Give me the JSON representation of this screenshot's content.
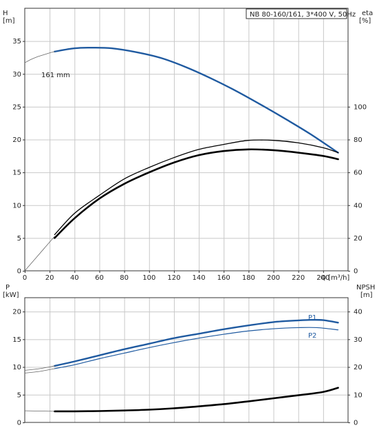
{
  "chart_data": [
    {
      "type": "line",
      "title": "NB 80-160/161, 3*400 V, 50Hz",
      "xlabel": "Q [m³/h]",
      "ylabel_left": [
        "H",
        "[m]"
      ],
      "ylabel_right": [
        "eta",
        "[%]"
      ],
      "xlim": [
        0,
        260
      ],
      "ylim_left": [
        0,
        40
      ],
      "ylim_right": [
        0,
        160
      ],
      "x_ticks": [
        "0",
        "20",
        "40",
        "60",
        "80",
        "100",
        "120",
        "140",
        "160",
        "180",
        "200",
        "220",
        "240"
      ],
      "y_ticks_left": [
        "0",
        "5",
        "10",
        "15",
        "20",
        "25",
        "30",
        "35"
      ],
      "y_ticks_right": [
        "0",
        "20",
        "40",
        "60",
        "80",
        "100"
      ],
      "grid": true,
      "annotation": "161 mm",
      "colors": {
        "head": "#1f5aa0",
        "eta": "#000000",
        "thin": "#666666"
      },
      "series": [
        {
          "key": "head",
          "name": "161 mm",
          "axis": "left",
          "x": [
            24,
            40,
            55,
            70,
            90,
            110,
            130,
            150,
            170,
            190,
            210,
            230,
            252
          ],
          "y": [
            33.4,
            33.9,
            34.0,
            33.9,
            33.3,
            32.4,
            31.0,
            29.3,
            27.4,
            25.3,
            23.1,
            20.8,
            18.0
          ]
        },
        {
          "key": "head_thin",
          "axis": "left",
          "x": [
            0,
            5,
            10,
            15,
            20,
            24
          ],
          "y": [
            31.7,
            32.2,
            32.6,
            32.9,
            33.2,
            33.4
          ]
        },
        {
          "key": "eta1",
          "axis": "right",
          "x": [
            24,
            40,
            60,
            80,
            100,
            120,
            140,
            160,
            180,
            200,
            220,
            240,
            252
          ],
          "y": [
            22,
            35,
            46,
            56,
            63,
            69,
            74,
            77,
            79.5,
            79.5,
            78,
            75,
            72
          ]
        },
        {
          "key": "eta2",
          "axis": "right",
          "x": [
            24,
            40,
            60,
            80,
            100,
            120,
            140,
            160,
            180,
            200,
            220,
            240,
            252
          ],
          "y": [
            20,
            32,
            44,
            53,
            60,
            66,
            70.5,
            73,
            74,
            73.5,
            72,
            70,
            68
          ]
        },
        {
          "key": "eta_thin",
          "axis": "right",
          "x": [
            0,
            8,
            16,
            24
          ],
          "y": [
            0,
            7,
            14,
            21
          ]
        }
      ]
    },
    {
      "type": "line",
      "ylabel_left": [
        "P",
        "[kW]"
      ],
      "ylabel_right": [
        "NPSH",
        "[m]"
      ],
      "xlim": [
        0,
        260
      ],
      "ylim_left": [
        0,
        22.5
      ],
      "ylim_right": [
        0,
        45
      ],
      "y_ticks_left": [
        "0",
        "5",
        "10",
        "15",
        "20"
      ],
      "y_ticks_right": [
        "0",
        "10",
        "20",
        "30",
        "40"
      ],
      "grid": true,
      "series_labels": [
        "P1",
        "P2"
      ],
      "colors": {
        "p": "#1f5aa0",
        "npsh": "#000000",
        "thin": "#666666"
      },
      "series": [
        {
          "key": "p1",
          "name": "P1",
          "axis": "left",
          "x": [
            24,
            40,
            60,
            80,
            100,
            120,
            140,
            160,
            180,
            200,
            220,
            230,
            240,
            252
          ],
          "y": [
            10.2,
            11.0,
            12.1,
            13.2,
            14.2,
            15.2,
            16.0,
            16.8,
            17.5,
            18.1,
            18.4,
            18.5,
            18.45,
            18.0
          ]
        },
        {
          "key": "p2",
          "name": "P2",
          "axis": "left",
          "x": [
            24,
            40,
            60,
            80,
            100,
            120,
            140,
            160,
            180,
            200,
            220,
            235,
            252
          ],
          "y": [
            9.7,
            10.4,
            11.5,
            12.5,
            13.5,
            14.4,
            15.2,
            15.9,
            16.5,
            16.9,
            17.1,
            17.1,
            16.7
          ]
        },
        {
          "key": "p1_thin",
          "axis": "left",
          "x": [
            0,
            12,
            24
          ],
          "y": [
            9.4,
            9.7,
            10.2
          ]
        },
        {
          "key": "p2_thin",
          "axis": "left",
          "x": [
            0,
            12,
            24
          ],
          "y": [
            8.9,
            9.2,
            9.7
          ]
        },
        {
          "key": "npsh",
          "axis": "right",
          "x": [
            24,
            40,
            60,
            80,
            100,
            120,
            140,
            160,
            180,
            200,
            220,
            240,
            252
          ],
          "y": [
            4.0,
            4.0,
            4.1,
            4.3,
            4.6,
            5.1,
            5.8,
            6.6,
            7.6,
            8.7,
            9.8,
            11.0,
            12.5
          ]
        },
        {
          "key": "npsh_thin",
          "axis": "right",
          "x": [
            0,
            12,
            24
          ],
          "y": [
            4.2,
            4.1,
            4.0
          ]
        }
      ]
    }
  ]
}
